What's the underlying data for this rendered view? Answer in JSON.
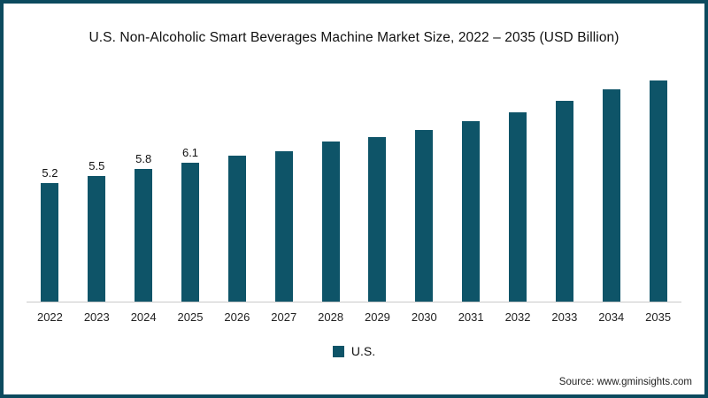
{
  "chart_data": {
    "type": "bar",
    "title": "U.S. Non-Alcoholic Smart Beverages Machine Market Size, 2022 – 2035 (USD Billion)",
    "categories": [
      "2022",
      "2023",
      "2024",
      "2025",
      "2026",
      "2027",
      "2028",
      "2029",
      "2030",
      "2031",
      "2032",
      "2033",
      "2034",
      "2035"
    ],
    "values": [
      5.2,
      5.5,
      5.8,
      6.1,
      6.4,
      6.6,
      7.0,
      7.2,
      7.5,
      7.9,
      8.3,
      8.8,
      9.3,
      9.7
    ],
    "data_labels": [
      "5.2",
      "5.5",
      "5.8",
      "6.1",
      "",
      "",
      "",
      "",
      "",
      "",
      "",
      "",
      "",
      ""
    ],
    "xlabel": "",
    "ylabel": "",
    "ylim": [
      0,
      10
    ],
    "grid": false,
    "legend": [
      "U.S."
    ],
    "legend_position": "bottom",
    "bar_color": "#0e5468"
  },
  "footer": {
    "source": "Source: www.gminsights.com"
  },
  "colors": {
    "bar": "#0e5468",
    "frame": "#0c4a5e",
    "axis_line": "#c9c9c9"
  }
}
